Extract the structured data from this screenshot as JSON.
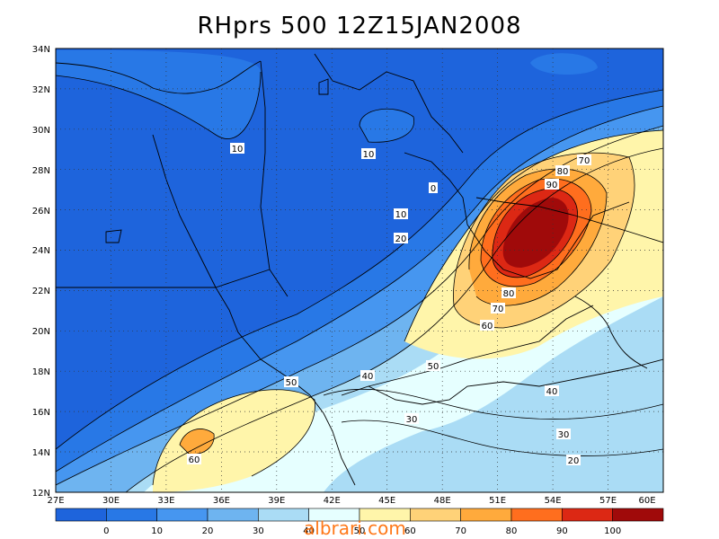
{
  "title": "RHprs 500 12Z15JAN2008",
  "watermark": "albrari.com",
  "lat_labels": [
    "34N",
    "32N",
    "30N",
    "28N",
    "26N",
    "24N",
    "22N",
    "20N",
    "18N",
    "16N",
    "14N",
    "12N"
  ],
  "lon_labels": [
    "27E",
    "30E",
    "33E",
    "36E",
    "39E",
    "42E",
    "45E",
    "48E",
    "51E",
    "54E",
    "57E",
    "60E"
  ],
  "legend": {
    "labels": [
      "0",
      "10",
      "20",
      "30",
      "40",
      "50",
      "60",
      "70",
      "80",
      "90",
      "100"
    ],
    "colors": [
      "#1e64dc",
      "#2878e6",
      "#4696f0",
      "#6eb4f0",
      "#aadcf5",
      "#e6ffff",
      "#fff5aa",
      "#ffd278",
      "#ffaa3c",
      "#ff6e1e",
      "#dc2814",
      "#a00a0a"
    ]
  },
  "contour_labels": [
    {
      "text": "10"
    },
    {
      "text": "10"
    },
    {
      "text": "0"
    },
    {
      "text": "10"
    },
    {
      "text": "20"
    },
    {
      "text": "80"
    },
    {
      "text": "90"
    },
    {
      "text": "70"
    },
    {
      "text": "80"
    },
    {
      "text": "70"
    },
    {
      "text": "60"
    },
    {
      "text": "50"
    },
    {
      "text": "40"
    },
    {
      "text": "50"
    },
    {
      "text": "30"
    },
    {
      "text": "40"
    },
    {
      "text": "60"
    },
    {
      "text": "30"
    },
    {
      "text": "20"
    }
  ]
}
